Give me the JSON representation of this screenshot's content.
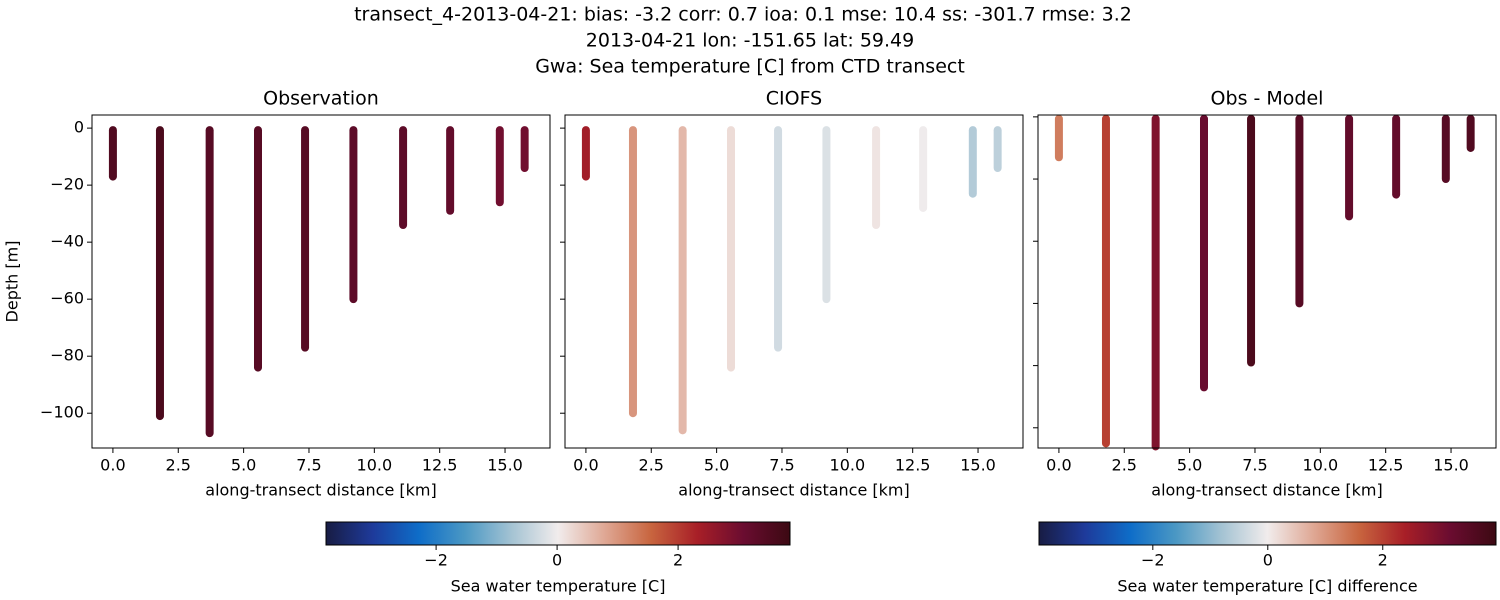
{
  "title_lines": [
    "transect_4-2013-04-21: bias: -3.2  corr: 0.7  ioa: 0.1  mse: 10.4  ss: -301.7  rmse: 3.2",
    "2013-04-21 lon: -151.65 lat: 59.49",
    "Gwa: Sea temperature [C] from CTD transect"
  ],
  "chart_data": [
    {
      "type": "scatter",
      "title": "Observation",
      "x_label": "along-transect distance [km]",
      "y_label": "Depth [m]",
      "x": [
        0.0,
        1.8,
        3.7,
        5.55,
        7.35,
        9.2,
        11.1,
        12.9,
        14.8,
        15.75
      ],
      "depth": [
        -17,
        -101,
        -107,
        -84,
        -77,
        -60,
        -34,
        -29,
        -26,
        -14
      ],
      "values": [
        3.5,
        3.6,
        3.4,
        3.4,
        3.4,
        3.3,
        3.3,
        3.2,
        3.0,
        3.0
      ],
      "xlim": [
        -0.8,
        16.72
      ],
      "ylim": [
        -112.2,
        4.6
      ],
      "xticks": [
        {
          "value": 0,
          "label": "0.0"
        },
        2.5,
        {
          "value": 5,
          "label": "5.0"
        },
        7.5,
        {
          "value": 10,
          "label": "10.0"
        },
        12.5,
        {
          "value": 15,
          "label": "15.0"
        }
      ],
      "yticks": [
        0,
        {
          "value": -20,
          "label": "−20"
        },
        {
          "value": -40,
          "label": "−40"
        },
        {
          "value": -60,
          "label": "−60"
        },
        {
          "value": -80,
          "label": "−80"
        },
        {
          "value": -100,
          "label": "−100"
        }
      ]
    },
    {
      "type": "scatter",
      "title": "CIOFS",
      "x_label": "along-transect distance [km]",
      "x": [
        0.0,
        1.8,
        3.7,
        5.55,
        7.35,
        9.2,
        11.1,
        12.9,
        14.8,
        15.75
      ],
      "depth": [
        -17,
        -100,
        -106,
        -84,
        -77,
        -60,
        -34,
        -28,
        -23,
        -14
      ],
      "values": [
        2.4,
        1.0,
        0.6,
        0.2,
        -0.3,
        -0.2,
        0.1,
        0.0,
        -0.6,
        -0.5
      ],
      "xlim": [
        -0.8,
        16.72
      ],
      "ylim": [
        -112.2,
        4.6
      ],
      "xticks": [
        {
          "value": 0,
          "label": "0.0"
        },
        2.5,
        {
          "value": 5,
          "label": "5.0"
        },
        7.5,
        {
          "value": 10,
          "label": "10.0"
        },
        12.5,
        {
          "value": 15,
          "label": "15.0"
        }
      ],
      "yticks": [
        0,
        -20,
        -40,
        -60,
        -80,
        -100
      ],
      "colorbar": {
        "label": "Sea water temperature [C]",
        "lim": [
          -3.82,
          3.85
        ],
        "ticks": [
          {
            "value": -2,
            "label": "−2"
          },
          0,
          2
        ],
        "colormap": [
          "#181c43",
          "#1e3a9a",
          "#0e6dc8",
          "#4b98c4",
          "#a4c3d3",
          "#f1ecec",
          "#dfa895",
          "#c8653f",
          "#a81f27",
          "#6a0c30",
          "#3c0912"
        ]
      }
    },
    {
      "type": "scatter",
      "title": "Obs - Model",
      "x_label": "along-transect distance [km]",
      "x": [
        0.0,
        1.8,
        3.7,
        5.55,
        7.35,
        9.2,
        11.1,
        12.9,
        14.8,
        15.75
      ],
      "depth": [
        -13,
        -105,
        -106,
        -87,
        -79,
        -60,
        -32,
        -25,
        -20,
        -10
      ],
      "values": [
        1.3,
        2.0,
        2.9,
        3.2,
        3.7,
        3.5,
        3.3,
        3.3,
        3.5,
        3.6
      ],
      "xlim": [
        -0.8,
        16.72
      ],
      "ylim": [
        -106.5,
        0.6
      ],
      "xticks": [
        {
          "value": 0,
          "label": "0.0"
        },
        2.5,
        {
          "value": 5,
          "label": "5.0"
        },
        7.5,
        {
          "value": 10,
          "label": "10.0"
        },
        12.5,
        {
          "value": 15,
          "label": "15.0"
        }
      ],
      "yticks": [
        0,
        -20,
        -40,
        -60,
        -80,
        -100
      ],
      "colorbar": {
        "label": "Sea water temperature [C] difference",
        "lim": [
          -3.98,
          3.97
        ],
        "ticks": [
          {
            "value": -2,
            "label": "−2"
          },
          0,
          2
        ],
        "colormap": [
          "#181c43",
          "#1e3a9a",
          "#0e6dc8",
          "#4b98c4",
          "#a4c3d3",
          "#f1ecec",
          "#dfa895",
          "#c8653f",
          "#a81f27",
          "#6a0c30",
          "#3c0912"
        ]
      }
    }
  ]
}
